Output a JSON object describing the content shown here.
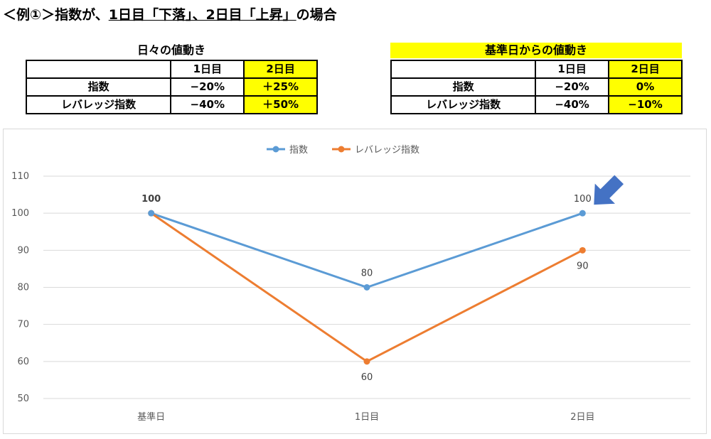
{
  "heading": {
    "prefix": "＜例①＞指数が、",
    "underlined": "1日目「下落」、2日目「上昇」",
    "suffix": "の場合"
  },
  "table_left": {
    "caption": "日々の値動き",
    "header": [
      "",
      "1日目",
      "2日目"
    ],
    "rows": [
      [
        "指数",
        "−20%",
        "＋25%"
      ],
      [
        "レバレッジ指数",
        "−40%",
        "＋50%"
      ]
    ]
  },
  "table_right": {
    "caption": "基準日からの値動き",
    "header": [
      "",
      "1日目",
      "2日目"
    ],
    "rows": [
      [
        "指数",
        "−20%",
        "0%"
      ],
      [
        "レバレッジ指数",
        "−40%",
        "−10%"
      ]
    ]
  },
  "colors": {
    "series1": "#5b9bd5",
    "series2": "#ed7d31",
    "highlight": "#ffff00",
    "arrow": "#4472c4"
  },
  "chart_data": {
    "type": "line",
    "categories": [
      "基準日",
      "1日目",
      "2日目"
    ],
    "series": [
      {
        "name": "指数",
        "values": [
          100,
          80,
          100
        ]
      },
      {
        "name": "レバレッジ指数",
        "values": [
          100,
          60,
          90
        ]
      }
    ],
    "y_ticks": [
      "50",
      "60",
      "70",
      "80",
      "90",
      "100",
      "110"
    ],
    "ylim": [
      50,
      110
    ],
    "grid": true,
    "legend_position": "top",
    "data_labels": {
      "series1": [
        "100",
        "80",
        "100"
      ],
      "series2": [
        "",
        "60",
        "90"
      ]
    },
    "annotation": "arrow pointing to 2日目 指数 point"
  }
}
